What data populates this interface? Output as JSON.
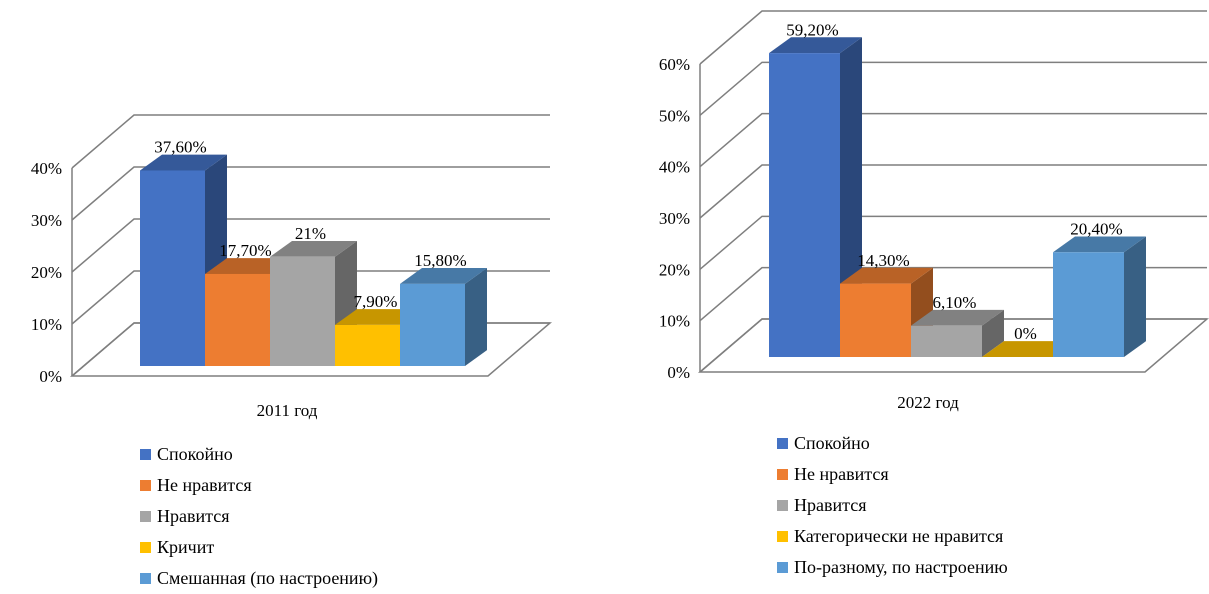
{
  "chart_data": [
    {
      "type": "bar",
      "categories": [
        "2011 год"
      ],
      "ylim": [
        0,
        40
      ],
      "y_ticks": [
        "0%",
        "10%",
        "20%",
        "30%",
        "40%"
      ],
      "grid": true,
      "legend_position": "bottom",
      "series": [
        {
          "name": "Спокойно",
          "value": 37.6,
          "label": "37,60%",
          "color": "#4472C4"
        },
        {
          "name": "Не нравится",
          "value": 17.7,
          "label": "17,70%",
          "color": "#ED7D31"
        },
        {
          "name": "Нравится",
          "value": 21,
          "label": "21%",
          "color": "#A5A5A5"
        },
        {
          "name": "Кричит",
          "value": 7.9,
          "label": "7,90%",
          "color": "#FFC000"
        },
        {
          "name": "Смешанная (по настроению)",
          "value": 15.8,
          "label": "15,80%",
          "color": "#5B9BD5"
        }
      ]
    },
    {
      "type": "bar",
      "categories": [
        "2022 год"
      ],
      "ylim": [
        0,
        60
      ],
      "y_ticks": [
        "0%",
        "10%",
        "20%",
        "30%",
        "40%",
        "50%",
        "60%"
      ],
      "grid": true,
      "legend_position": "bottom",
      "series": [
        {
          "name": "Спокойно",
          "value": 59.2,
          "label": "59,20%",
          "color": "#4472C4"
        },
        {
          "name": "Не нравится",
          "value": 14.3,
          "label": "14,30%",
          "color": "#ED7D31"
        },
        {
          "name": "Нравится",
          "value": 6.1,
          "label": "6,10%",
          "color": "#A5A5A5"
        },
        {
          "name": "Категорически не нравится",
          "value": 0,
          "label": "0%",
          "color": "#FFC000"
        },
        {
          "name": "По-разному, по настроению",
          "value": 20.4,
          "label": "20,40%",
          "color": "#5B9BD5"
        }
      ]
    }
  ]
}
